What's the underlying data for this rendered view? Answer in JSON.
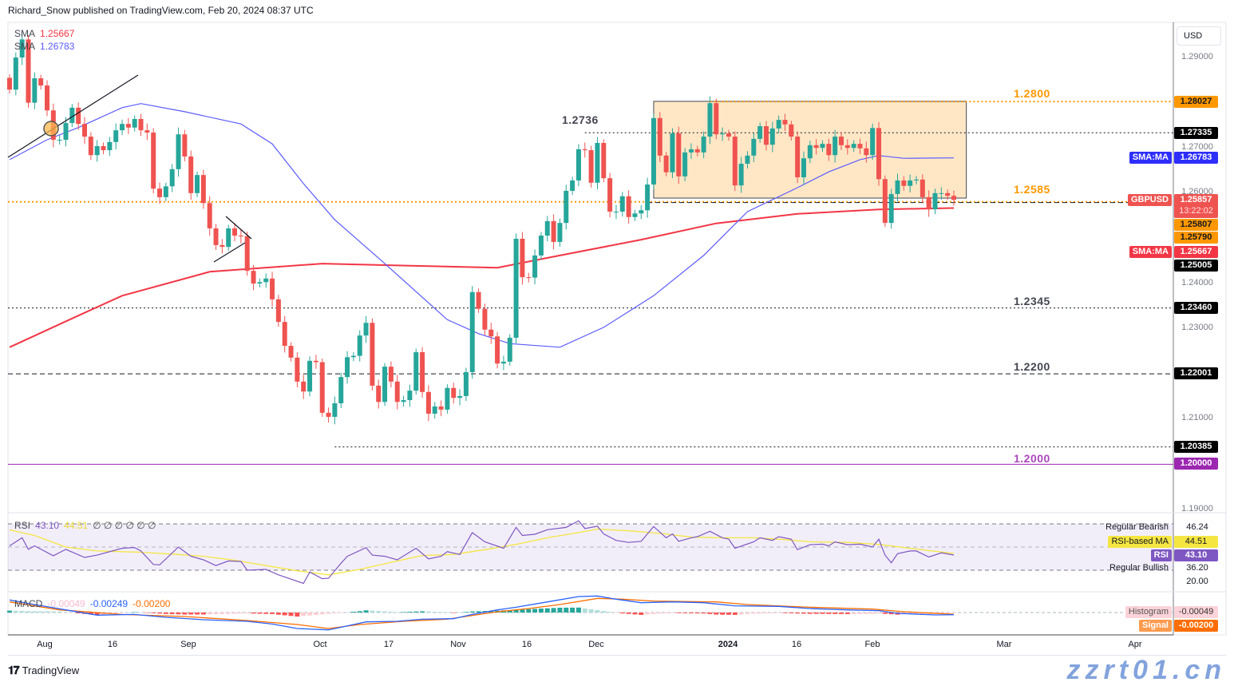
{
  "header": {
    "published": "Richard_Snow published on TradingView.com, Feb 20, 2024 08:37 UTC"
  },
  "legend": {
    "sma1_label": "SMA",
    "sma1_value": "1.25667",
    "sma2_label": "SMA",
    "sma2_value": "1.26783"
  },
  "currency": "USD",
  "price_axis": [
    "1.29000",
    "1.27000",
    "1.26000",
    "1.24000",
    "1.23000",
    "1.21000",
    "1.19000"
  ],
  "price_tags": {
    "t1": "1.28027",
    "t2": "1.27335",
    "sma_ma_label": "SMA:MA",
    "sma50": "1.26783",
    "symbol": "GBPUSD",
    "last": "1.25857",
    "countdown": "13:22:02",
    "t3": "1.25807",
    "t4": "1.25790",
    "sma200": "1.25667",
    "t5": "1.25005",
    "t6": "1.23460",
    "t7": "1.22001",
    "t8": "1.20385",
    "t9": "1.20000"
  },
  "annotations": {
    "a1": "1.2800",
    "a2": "1.2736",
    "a3": "1.2585",
    "a4": "1.2345",
    "a5": "1.2200",
    "a6": "1.2000"
  },
  "rsi": {
    "label": "RSI",
    "value": "43.10",
    "ma_value": "44.51",
    "extra": "∅ ∅ ∅ ∅ ∅ ∅",
    "axis": {
      "bearish_label": "Regular Bearish",
      "bearish_value": "46.24",
      "ma_label": "RSI-based MA",
      "ma_val": "44.51",
      "rsi_label": "RSI",
      "rsi_val": "43.10",
      "bullish_label": "Regular Bullish",
      "bullish_value": "36.20",
      "low": "20.00"
    }
  },
  "macd": {
    "label": "MACD",
    "hist": "-0.00049",
    "macd": "-0.00249",
    "signal": "-0.00200",
    "axis": {
      "hist_label": "Histogram",
      "hist_val": "-0.00049",
      "signal_label": "Signal",
      "signal_val": "-0.00200"
    }
  },
  "xaxis": {
    "ticks": [
      "Aug",
      "16",
      "Sep",
      "Oct",
      "17",
      "Nov",
      "16",
      "Dec",
      "2024",
      "16",
      "Feb",
      "Mar",
      "Apr"
    ]
  },
  "footer": {
    "brand": "TradingView",
    "watermark": "zzrt01.cn"
  },
  "colors": {
    "up": "#26a69a",
    "down": "#ef5350",
    "sma50": "#5b5bff",
    "sma200": "#f23645",
    "orange": "#ff9800",
    "purple": "#9c27b0",
    "box": "#ffe7c6",
    "rsi": "#7e57c2",
    "rsi_ma": "#f5e642",
    "macd": "#2962ff",
    "signal": "#ff6d00"
  },
  "chart_data": {
    "type": "candlestick",
    "symbol": "GBPUSD",
    "ylim": [
      1.19,
      1.29
    ],
    "first_open": 1.2855,
    "close": [
      1.2829,
      1.29,
      1.294,
      1.28,
      1.2854,
      1.2838,
      1.2783,
      1.2718,
      1.2718,
      1.2755,
      1.2789,
      1.2753,
      1.2725,
      1.2684,
      1.2704,
      1.2695,
      1.2713,
      1.2739,
      1.2753,
      1.2745,
      1.2764,
      1.2739,
      1.2734,
      1.261,
      1.2591,
      1.2615,
      1.2653,
      1.273,
      1.2681,
      1.26,
      1.264,
      1.2578,
      1.2522,
      1.2485,
      1.2481,
      1.2522,
      1.2506,
      1.2505,
      1.2428,
      1.24,
      1.2403,
      1.2411,
      1.2365,
      1.2315,
      1.2262,
      1.2236,
      1.2183,
      1.2161,
      1.2229,
      1.2226,
      1.2114,
      1.2105,
      1.2135,
      1.2193,
      1.2237,
      1.224,
      1.2285,
      1.2313,
      1.2174,
      1.2138,
      1.2216,
      1.2183,
      1.2138,
      1.2142,
      1.2163,
      1.2248,
      1.216,
      1.2112,
      1.2128,
      1.2121,
      1.2169,
      1.2147,
      1.2151,
      1.2204,
      1.2381,
      1.2344,
      1.2298,
      1.2283,
      1.2223,
      1.2227,
      1.228,
      1.2499,
      1.2414,
      1.2413,
      1.2462,
      1.2506,
      1.2538,
      1.2492,
      1.2534,
      1.2605,
      1.2628,
      1.2697,
      1.2695,
      1.2623,
      1.2711,
      1.2633,
      1.2559,
      1.2559,
      1.2593,
      1.2547,
      1.2555,
      1.2562,
      1.2619,
      1.2766,
      1.2683,
      1.2646,
      1.2732,
      1.2637,
      1.269,
      1.2697,
      1.269,
      1.2725,
      1.2799,
      1.273,
      1.2732,
      1.2725,
      1.2617,
      1.2665,
      1.2683,
      1.272,
      1.2748,
      1.2707,
      1.2743,
      1.2762,
      1.2752,
      1.2725,
      1.2635,
      1.2677,
      1.2706,
      1.27,
      1.2709,
      1.2684,
      1.2725,
      1.2706,
      1.27,
      1.2709,
      1.2699,
      1.2684,
      1.2744,
      1.2631,
      1.2534,
      1.2598,
      1.2628,
      1.2616,
      1.2628,
      1.263,
      1.2591,
      1.2564,
      1.26,
      1.26,
      1.2594,
      1.2585
    ],
    "sma50": [
      [
        0,
        1.2674
      ],
      [
        6,
        1.2718
      ],
      [
        11,
        1.2745
      ],
      [
        18,
        1.2789
      ],
      [
        21,
        1.2798
      ],
      [
        28,
        1.278
      ],
      [
        37,
        1.2753
      ],
      [
        42,
        1.2709
      ],
      [
        47,
        1.2621
      ],
      [
        52,
        1.2541
      ],
      [
        60,
        1.2444
      ],
      [
        70,
        1.232
      ],
      [
        75,
        1.2289
      ],
      [
        80,
        1.2267
      ],
      [
        88,
        1.2259
      ],
      [
        95,
        1.2303
      ],
      [
        103,
        1.2373
      ],
      [
        111,
        1.2462
      ],
      [
        118,
        1.2559
      ],
      [
        126,
        1.2612
      ],
      [
        131,
        1.2647
      ],
      [
        136,
        1.2674
      ],
      [
        139,
        1.2683
      ],
      [
        143,
        1.2677
      ],
      [
        151,
        1.2678
      ]
    ],
    "sma200": [
      [
        0,
        1.2259
      ],
      [
        11,
        1.2329
      ],
      [
        18,
        1.2373
      ],
      [
        32,
        1.2426
      ],
      [
        50,
        1.2444
      ],
      [
        65,
        1.2439
      ],
      [
        78,
        1.2435
      ],
      [
        88,
        1.2462
      ],
      [
        101,
        1.2497
      ],
      [
        113,
        1.2533
      ],
      [
        126,
        1.2554
      ],
      [
        139,
        1.2564
      ],
      [
        151,
        1.2567
      ]
    ],
    "levels": [
      {
        "price": 1.28027,
        "style": "dotted",
        "color": "#ff9800",
        "from_bar": 112
      },
      {
        "price": 1.27335,
        "style": "dotted",
        "color": "#131722",
        "from_bar": 92
      },
      {
        "price": 1.25807,
        "style": "dotted",
        "color": "#ff9800",
        "from_bar": 0
      },
      {
        "price": 1.2579,
        "style": "dashed",
        "color": "#131722",
        "from_bar": 102
      },
      {
        "price": 1.2346,
        "style": "dotted",
        "color": "#131722",
        "from_bar": 0
      },
      {
        "price": 1.22001,
        "style": "dashed",
        "color": "#131722",
        "from_bar": 0
      },
      {
        "price": 1.20385,
        "style": "dotted",
        "color": "#131722",
        "from_bar": 52
      },
      {
        "price": 1.2,
        "style": "solid",
        "color": "#9c27b0",
        "from_bar": 0
      }
    ],
    "range_box": {
      "from_bar": 103,
      "to_bar": 153,
      "top": 1.2803,
      "bottom": 1.2589
    },
    "rsi": [
      [
        0,
        51
      ],
      [
        2,
        58
      ],
      [
        3,
        48
      ],
      [
        4,
        51
      ],
      [
        7,
        42.5
      ],
      [
        9,
        48
      ],
      [
        12,
        41
      ],
      [
        14,
        43
      ],
      [
        18,
        49
      ],
      [
        20,
        49.5
      ],
      [
        21,
        46.6
      ],
      [
        23,
        35
      ],
      [
        24,
        34.6
      ],
      [
        27,
        50
      ],
      [
        29,
        42
      ],
      [
        31,
        39
      ],
      [
        33,
        34
      ],
      [
        35,
        38
      ],
      [
        37,
        37.5
      ],
      [
        38,
        30
      ],
      [
        41,
        30.7
      ],
      [
        43,
        26
      ],
      [
        47,
        18.6
      ],
      [
        48,
        28.4
      ],
      [
        50,
        22.7
      ],
      [
        51,
        23
      ],
      [
        53,
        36
      ],
      [
        54,
        42
      ],
      [
        57,
        49.5
      ],
      [
        58,
        43
      ],
      [
        60,
        42
      ],
      [
        62,
        39
      ],
      [
        65,
        49
      ],
      [
        67,
        39.8
      ],
      [
        69,
        42
      ],
      [
        70,
        46
      ],
      [
        72,
        43.6
      ],
      [
        74,
        62.5
      ],
      [
        76,
        54.5
      ],
      [
        79,
        49
      ],
      [
        81,
        67
      ],
      [
        82,
        60
      ],
      [
        84,
        61
      ],
      [
        86,
        65
      ],
      [
        89,
        67
      ],
      [
        91,
        72.7
      ],
      [
        92,
        66
      ],
      [
        94,
        68
      ],
      [
        95,
        61.4
      ],
      [
        97,
        55.7
      ],
      [
        99,
        54
      ],
      [
        101,
        55
      ],
      [
        103,
        67.7
      ],
      [
        105,
        58
      ],
      [
        106,
        61.4
      ],
      [
        107,
        55
      ],
      [
        109,
        58
      ],
      [
        110,
        59
      ],
      [
        112,
        63.6
      ],
      [
        114,
        58
      ],
      [
        115,
        56.8
      ],
      [
        116,
        49
      ],
      [
        119,
        54.5
      ],
      [
        120,
        58
      ],
      [
        122,
        55.7
      ],
      [
        123,
        59
      ],
      [
        125,
        56.8
      ],
      [
        126,
        47.7
      ],
      [
        128,
        52
      ],
      [
        130,
        52.5
      ],
      [
        131,
        51
      ],
      [
        132,
        54.5
      ],
      [
        134,
        52
      ],
      [
        136,
        52.5
      ],
      [
        138,
        50
      ],
      [
        139,
        56.8
      ],
      [
        140,
        43
      ],
      [
        141,
        36.4
      ],
      [
        142,
        44.3
      ],
      [
        144,
        46.6
      ],
      [
        145,
        46.6
      ],
      [
        147,
        41.4
      ],
      [
        149,
        45
      ],
      [
        151,
        43.1
      ]
    ],
    "rsi_ma": [
      [
        0,
        64.8
      ],
      [
        4,
        60
      ],
      [
        9,
        50
      ],
      [
        14,
        46.6
      ],
      [
        21,
        45.5
      ],
      [
        27,
        43.6
      ],
      [
        31,
        42
      ],
      [
        36,
        38.6
      ],
      [
        41,
        34
      ],
      [
        46,
        29.5
      ],
      [
        51,
        26
      ],
      [
        56,
        30.7
      ],
      [
        61,
        36.8
      ],
      [
        66,
        42.7
      ],
      [
        71,
        43.6
      ],
      [
        76,
        47.7
      ],
      [
        81,
        52.3
      ],
      [
        86,
        58
      ],
      [
        91,
        62.5
      ],
      [
        94,
        65.5
      ],
      [
        99,
        64
      ],
      [
        104,
        61.8
      ],
      [
        109,
        58.6
      ],
      [
        114,
        58
      ],
      [
        119,
        58
      ],
      [
        124,
        56.4
      ],
      [
        128,
        54.5
      ],
      [
        134,
        54
      ],
      [
        139,
        52.3
      ],
      [
        144,
        48.9
      ],
      [
        151,
        44.5
      ]
    ],
    "rsi_levels": [
      70,
      50,
      30
    ],
    "macd_line": [
      [
        0,
        0.0146
      ],
      [
        4,
        0.0093
      ],
      [
        9,
        0.0031
      ],
      [
        14,
        -0.0031
      ],
      [
        20,
        -0.0022
      ],
      [
        25,
        -0.0056
      ],
      [
        31,
        -0.0084
      ],
      [
        38,
        -0.0103
      ],
      [
        42,
        -0.0134
      ],
      [
        46,
        -0.0187
      ],
      [
        51,
        -0.0202
      ],
      [
        54,
        -0.0156
      ],
      [
        57,
        -0.0109
      ],
      [
        62,
        -0.0103
      ],
      [
        66,
        -0.0078
      ],
      [
        71,
        -0.0072
      ],
      [
        74,
        -0.0022
      ],
      [
        78,
        0.0031
      ],
      [
        81,
        0.0062
      ],
      [
        86,
        0.0124
      ],
      [
        91,
        0.0187
      ],
      [
        94,
        0.0193
      ],
      [
        97,
        0.0156
      ],
      [
        101,
        0.0115
      ],
      [
        106,
        0.0124
      ],
      [
        111,
        0.0115
      ],
      [
        116,
        0.0078
      ],
      [
        123,
        0.0072
      ],
      [
        128,
        0.0047
      ],
      [
        134,
        0.0031
      ],
      [
        139,
        0.0022
      ],
      [
        142,
        -0.0009
      ],
      [
        148,
        -0.0028
      ],
      [
        151,
        -0.00249
      ]
    ],
    "signal_line": [
      [
        0,
        0.0124
      ],
      [
        8,
        0.0031
      ],
      [
        18,
        -0.0022
      ],
      [
        28,
        -0.0047
      ],
      [
        38,
        -0.0093
      ],
      [
        46,
        -0.014
      ],
      [
        51,
        -0.0187
      ],
      [
        56,
        -0.014
      ],
      [
        63,
        -0.0103
      ],
      [
        70,
        -0.0078
      ],
      [
        78,
        0.0009
      ],
      [
        83,
        0.0047
      ],
      [
        88,
        0.0093
      ],
      [
        94,
        0.0165
      ],
      [
        98,
        0.0156
      ],
      [
        103,
        0.0134
      ],
      [
        113,
        0.0124
      ],
      [
        118,
        0.0093
      ],
      [
        128,
        0.0062
      ],
      [
        138,
        0.004
      ],
      [
        143,
        0.0009
      ],
      [
        151,
        -0.002
      ]
    ]
  }
}
